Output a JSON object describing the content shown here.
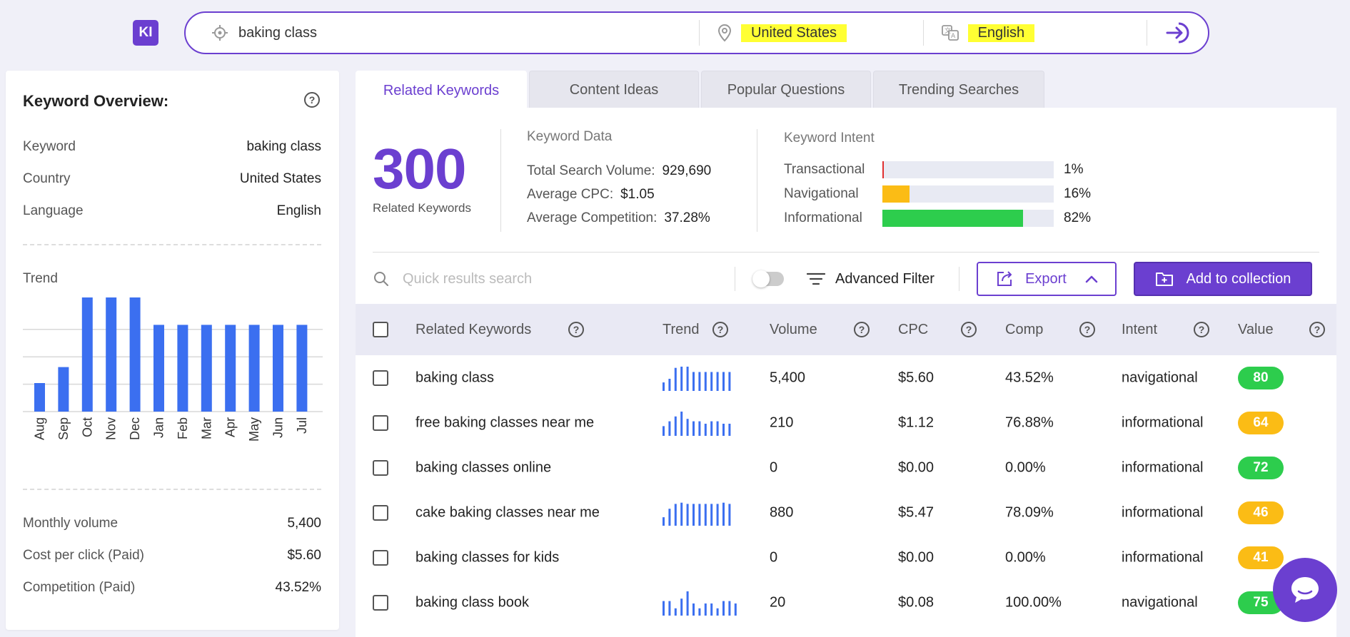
{
  "app": {
    "logo": "KI"
  },
  "search": {
    "keyword": "baking class",
    "country": "United States",
    "language": "English"
  },
  "overview": {
    "title": "Keyword Overview:",
    "rows": [
      {
        "label": "Keyword",
        "value": "baking class"
      },
      {
        "label": "Country",
        "value": "United States"
      },
      {
        "label": "Language",
        "value": "English"
      }
    ],
    "trend_label": "Trend",
    "stats": [
      {
        "label": "Monthly volume",
        "value": "5,400"
      },
      {
        "label": "Cost per click (Paid)",
        "value": "$5.60"
      },
      {
        "label": "Competition (Paid)",
        "value": "43.52%"
      }
    ]
  },
  "chart_data": {
    "type": "bar",
    "categories": [
      "Aug",
      "Sep",
      "Oct",
      "Nov",
      "Dec",
      "Jan",
      "Feb",
      "Mar",
      "Apr",
      "May",
      "Jun",
      "Jul"
    ],
    "values": [
      0.25,
      0.39,
      1.0,
      1.0,
      1.0,
      0.76,
      0.76,
      0.76,
      0.76,
      0.76,
      0.76,
      0.76
    ],
    "ylim": [
      0,
      1
    ],
    "grid": true,
    "color": "#3b6ff0"
  },
  "tabs": [
    {
      "label": "Related Keywords",
      "active": true
    },
    {
      "label": "Content Ideas",
      "active": false
    },
    {
      "label": "Popular Questions",
      "active": false
    },
    {
      "label": "Trending Searches",
      "active": false
    }
  ],
  "summary": {
    "count": "300",
    "count_label": "Related Keywords",
    "kd_title": "Keyword Data",
    "kd_rows": [
      {
        "label": "Total Search Volume:",
        "value": "929,690"
      },
      {
        "label": "Average CPC:",
        "value": "$1.05"
      },
      {
        "label": "Average Competition:",
        "value": "37.28%"
      }
    ],
    "ki_title": "Keyword Intent",
    "ki_rows": [
      {
        "label": "Transactional",
        "pct": "1%",
        "fraction": 0.01,
        "color": "#e03030"
      },
      {
        "label": "Navigational",
        "pct": "16%",
        "fraction": 0.16,
        "color": "#fbbc15"
      },
      {
        "label": "Informational",
        "pct": "82%",
        "fraction": 0.82,
        "color": "#2dcd4d"
      }
    ]
  },
  "toolbar": {
    "search_placeholder": "Quick results search",
    "advanced_filter": "Advanced Filter",
    "export": "Export",
    "add_collection": "Add to collection"
  },
  "table": {
    "headers": [
      "Related Keywords",
      "Trend",
      "Volume",
      "CPC",
      "Comp",
      "Intent",
      "Value"
    ],
    "rows": [
      {
        "keyword": "baking class",
        "volume": "5,400",
        "cpc": "$5.60",
        "comp": "43.52%",
        "intent": "navigational",
        "value": "80",
        "color": "#2dcd4d",
        "trend": [
          0.35,
          0.5,
          0.95,
          1.0,
          1.0,
          0.78,
          0.78,
          0.78,
          0.78,
          0.78,
          0.78,
          0.78
        ]
      },
      {
        "keyword": "free baking classes near me",
        "volume": "210",
        "cpc": "$1.12",
        "comp": "76.88%",
        "intent": "informational",
        "value": "64",
        "color": "#fbbc15",
        "trend": [
          0.4,
          0.6,
          0.8,
          1.0,
          0.7,
          0.6,
          0.6,
          0.5,
          0.6,
          0.6,
          0.5,
          0.5
        ]
      },
      {
        "keyword": "baking classes online",
        "volume": "0",
        "cpc": "$0.00",
        "comp": "0.00%",
        "intent": "informational",
        "value": "72",
        "color": "#2dcd4d",
        "trend": []
      },
      {
        "keyword": "cake baking classes near me",
        "volume": "880",
        "cpc": "$5.47",
        "comp": "78.09%",
        "intent": "informational",
        "value": "46",
        "color": "#fbbc15",
        "trend": [
          0.35,
          0.7,
          0.9,
          0.95,
          0.9,
          0.9,
          0.9,
          0.9,
          0.9,
          0.9,
          0.95,
          0.9
        ]
      },
      {
        "keyword": "baking classes for kids",
        "volume": "0",
        "cpc": "$0.00",
        "comp": "0.00%",
        "intent": "informational",
        "value": "41",
        "color": "#fbbc15",
        "trend": []
      },
      {
        "keyword": "baking class book",
        "volume": "20",
        "cpc": "$0.08",
        "comp": "100.00%",
        "intent": "navigational",
        "value": "75",
        "color": "#2dcd4d",
        "trend": [
          0.6,
          0.6,
          0.3,
          0.7,
          1.0,
          0.5,
          0.3,
          0.5,
          0.5,
          0.3,
          0.6,
          0.6,
          0.5
        ]
      }
    ]
  }
}
